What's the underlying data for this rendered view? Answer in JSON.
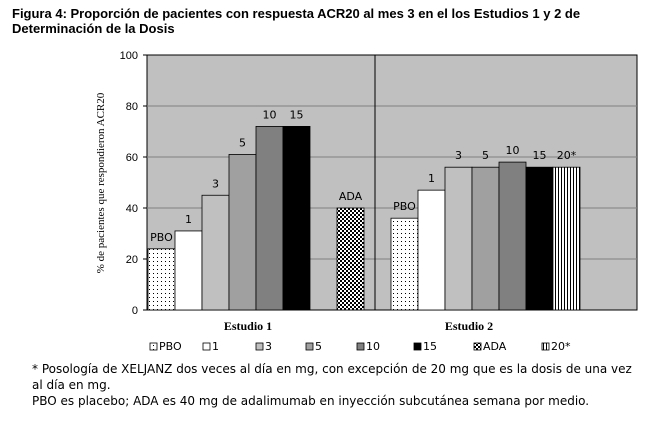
{
  "figure_title": "Figura 4: Proporción de pacientes con respuesta ACR20 al mes 3 en el los Estudios 1 y 2 de Determinación de la Dosis",
  "footnotes": [
    "* Posología de XELJANZ dos veces al día en mg, con excepción de 20 mg que es la dosis de una vez al día en mg.",
    "PBO es placebo; ADA es 40 mg de adalimumab en inyección subcutánea semana por medio."
  ],
  "colors": {
    "plot_bg": "#c0c0c0",
    "gridline": "#808080",
    "PBO": "dotted-white",
    "1": "#ffffff",
    "3": "#c0c0c0",
    "5": "#a0a0a0",
    "10": "#808080",
    "15": "#000000",
    "ADA": "checker-black-white",
    "20*": "vertical-lines-white"
  },
  "chart_data": {
    "type": "bar",
    "ylabel": "% de pacientes que respondieron ACR20",
    "ylim": [
      0,
      100
    ],
    "yticks": [
      "0",
      "20",
      "40",
      "60",
      "80",
      "100"
    ],
    "grid": true,
    "legend_position": "bottom",
    "legend": [
      "PBO",
      "1",
      "3",
      "5",
      "10",
      "15",
      "ADA",
      "20*"
    ],
    "panels": [
      {
        "name": "Estudio 1",
        "bars": [
          {
            "label": "PBO",
            "value": 24
          },
          {
            "label": "1",
            "value": 31
          },
          {
            "label": "3",
            "value": 45
          },
          {
            "label": "5",
            "value": 61
          },
          {
            "label": "10",
            "value": 72
          },
          {
            "label": "15",
            "value": 72
          },
          {
            "label": "ADA",
            "value": 40
          }
        ]
      },
      {
        "name": "Estudio 2",
        "bars": [
          {
            "label": "PBO",
            "value": 36
          },
          {
            "label": "1",
            "value": 47
          },
          {
            "label": "3",
            "value": 56
          },
          {
            "label": "5",
            "value": 56
          },
          {
            "label": "10",
            "value": 58
          },
          {
            "label": "15",
            "value": 56
          },
          {
            "label": "20*",
            "value": 56
          }
        ]
      }
    ]
  }
}
